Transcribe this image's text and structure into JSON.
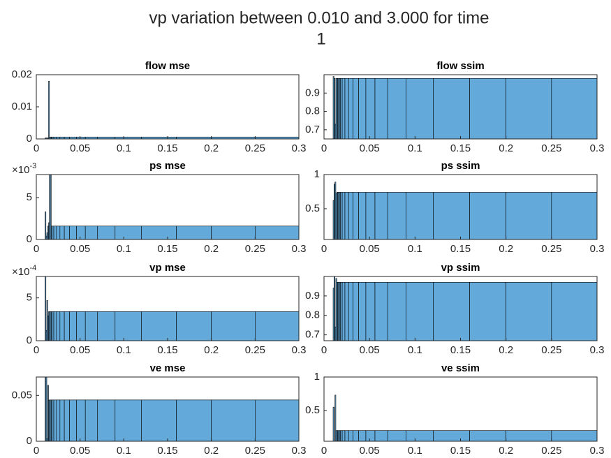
{
  "title": [
    "vp variation between 0.010 and 3.000 for time",
    "1"
  ],
  "chart_data": [
    {
      "type": "histogram",
      "title": "flow mse",
      "color": "#63a9d9",
      "bins": [
        0.01,
        0.011,
        0.012,
        0.013,
        0.014,
        0.015,
        0.016,
        0.017,
        0.018,
        0.02,
        0.023,
        0.027,
        0.032,
        0.038,
        0.046,
        0.056,
        0.07,
        0.09,
        0.12,
        0.16,
        0.2,
        0.25,
        0.3
      ],
      "values": [
        0.0003,
        0.0003,
        0.0003,
        0.0003,
        0.018,
        0.0006,
        0.0006,
        0.0006,
        0.0006,
        0.0006,
        0.0006,
        0.0006,
        0.0006,
        0.0006,
        0.0006,
        0.0006,
        0.0006,
        0.0006,
        0.0006,
        0.0006,
        0.0006,
        0.0006
      ],
      "xlim": [
        0,
        0.3
      ],
      "xticks": [
        0,
        0.05,
        0.1,
        0.15,
        0.2,
        0.25,
        0.3
      ],
      "ylim": [
        0,
        0.02
      ],
      "yticks": [
        0,
        0.01,
        0.02
      ]
    },
    {
      "type": "histogram",
      "title": "flow ssim",
      "color": "#63a9d9",
      "bins": [
        0.01,
        0.011,
        0.012,
        0.013,
        0.014,
        0.015,
        0.016,
        0.017,
        0.018,
        0.02,
        0.023,
        0.027,
        0.032,
        0.038,
        0.046,
        0.056,
        0.07,
        0.09,
        0.12,
        0.16,
        0.2,
        0.25,
        0.3
      ],
      "values": [
        0.99,
        0.98,
        0.73,
        0.98,
        0.98,
        0.98,
        0.98,
        0.98,
        0.98,
        0.98,
        0.98,
        0.98,
        0.98,
        0.98,
        0.98,
        0.98,
        0.98,
        0.98,
        0.98,
        0.98,
        0.98,
        0.98
      ],
      "xlim": [
        0,
        0.3
      ],
      "xticks": [
        0,
        0.05,
        0.1,
        0.15,
        0.2,
        0.25,
        0.3
      ],
      "ylim": [
        0.65,
        1.0
      ],
      "yticks": [
        0.7,
        0.8,
        0.9
      ]
    },
    {
      "type": "histogram",
      "title": "ps mse",
      "color": "#63a9d9",
      "bins": [
        0.01,
        0.011,
        0.012,
        0.013,
        0.014,
        0.015,
        0.016,
        0.017,
        0.018,
        0.02,
        0.023,
        0.027,
        0.032,
        0.038,
        0.046,
        0.056,
        0.07,
        0.09,
        0.12,
        0.16,
        0.2,
        0.25,
        0.3
      ],
      "values": [
        0.0033,
        0.0004,
        0.0008,
        0.0016,
        0.002,
        0.0078,
        0.0078,
        0.0016,
        0.0016,
        0.0016,
        0.0016,
        0.0016,
        0.0016,
        0.0016,
        0.0016,
        0.0016,
        0.0016,
        0.0016,
        0.0016,
        0.0016,
        0.0016,
        0.0016
      ],
      "xlim": [
        0,
        0.3
      ],
      "xticks": [
        0,
        0.05,
        0.1,
        0.15,
        0.2,
        0.25,
        0.3
      ],
      "ylim": [
        0,
        0.00775
      ],
      "yticks": [
        0,
        {
          "value": 0.005,
          "label": "5"
        }
      ],
      "y_multiplier": {
        "base": "×10",
        "exponent": "-3"
      }
    },
    {
      "type": "histogram",
      "title": "ps ssim",
      "color": "#63a9d9",
      "bins": [
        0.01,
        0.011,
        0.012,
        0.013,
        0.014,
        0.015,
        0.016,
        0.017,
        0.018,
        0.02,
        0.023,
        0.027,
        0.032,
        0.038,
        0.046,
        0.056,
        0.07,
        0.09,
        0.12,
        0.16,
        0.2,
        0.25,
        0.3
      ],
      "values": [
        0.62,
        0.86,
        0.89,
        0.72,
        0.74,
        0.74,
        0.74,
        0.74,
        0.74,
        0.74,
        0.74,
        0.74,
        0.74,
        0.74,
        0.74,
        0.74,
        0.74,
        0.74,
        0.74,
        0.74,
        0.74,
        0.74
      ],
      "xlim": [
        0,
        0.3
      ],
      "xticks": [
        0,
        0.05,
        0.1,
        0.15,
        0.2,
        0.25,
        0.3
      ],
      "ylim": [
        0.05,
        1
      ],
      "yticks": [
        0.5,
        1
      ]
    },
    {
      "type": "histogram",
      "title": "vp mse",
      "color": "#63a9d9",
      "bins": [
        0.01,
        0.011,
        0.012,
        0.013,
        0.014,
        0.015,
        0.016,
        0.017,
        0.018,
        0.02,
        0.023,
        0.027,
        0.032,
        0.038,
        0.046,
        0.056,
        0.07,
        0.09,
        0.12,
        0.16,
        0.2,
        0.25,
        0.3
      ],
      "values": [
        0.00075,
        0.00012,
        0.00047,
        0.00029,
        0.00034,
        0.00034,
        0.00034,
        0.00034,
        0.00034,
        0.00034,
        0.00034,
        0.00034,
        0.00034,
        0.00034,
        0.00034,
        0.00034,
        0.00034,
        0.00034,
        0.00034,
        0.00034,
        0.00034,
        0.00034
      ],
      "xlim": [
        0,
        0.3
      ],
      "xticks": [
        0,
        0.05,
        0.1,
        0.15,
        0.2,
        0.25,
        0.3
      ],
      "ylim": [
        0,
        0.00075
      ],
      "yticks": [
        0,
        {
          "value": 0.0005,
          "label": "5"
        }
      ],
      "y_multiplier": {
        "base": "×10",
        "exponent": "-4"
      }
    },
    {
      "type": "histogram",
      "title": "vp ssim",
      "color": "#63a9d9",
      "bins": [
        0.01,
        0.011,
        0.012,
        0.013,
        0.014,
        0.015,
        0.016,
        0.017,
        0.018,
        0.02,
        0.023,
        0.027,
        0.032,
        0.038,
        0.046,
        0.056,
        0.07,
        0.09,
        0.12,
        0.16,
        0.2,
        0.25,
        0.3
      ],
      "values": [
        0.94,
        1.0,
        0.74,
        0.99,
        0.97,
        0.97,
        0.97,
        0.97,
        0.97,
        0.97,
        0.97,
        0.97,
        0.97,
        0.97,
        0.97,
        0.97,
        0.97,
        0.97,
        0.97,
        0.97,
        0.97,
        0.97
      ],
      "xlim": [
        0,
        0.3
      ],
      "xticks": [
        0,
        0.05,
        0.1,
        0.15,
        0.2,
        0.25,
        0.3
      ],
      "ylim": [
        0.67,
        1.0
      ],
      "yticks": [
        0.7,
        0.8,
        0.9
      ]
    },
    {
      "type": "histogram",
      "title": "ve mse",
      "color": "#63a9d9",
      "bins": [
        0.01,
        0.011,
        0.012,
        0.013,
        0.014,
        0.015,
        0.016,
        0.017,
        0.018,
        0.02,
        0.023,
        0.027,
        0.032,
        0.038,
        0.046,
        0.056,
        0.07,
        0.09,
        0.12,
        0.16,
        0.2,
        0.25,
        0.3
      ],
      "values": [
        0.07,
        0.07,
        0.003,
        0.061,
        0.045,
        0.045,
        0.045,
        0.045,
        0.045,
        0.045,
        0.045,
        0.045,
        0.045,
        0.045,
        0.045,
        0.045,
        0.045,
        0.045,
        0.045,
        0.045,
        0.045,
        0.045
      ],
      "xlim": [
        0,
        0.3
      ],
      "xticks": [
        0,
        0.05,
        0.1,
        0.15,
        0.2,
        0.25,
        0.3
      ],
      "ylim": [
        0,
        0.07
      ],
      "yticks": [
        0,
        0.05
      ]
    },
    {
      "type": "histogram",
      "title": "ve ssim",
      "color": "#63a9d9",
      "bins": [
        0.01,
        0.011,
        0.012,
        0.013,
        0.014,
        0.015,
        0.016,
        0.017,
        0.018,
        0.02,
        0.023,
        0.027,
        0.032,
        0.038,
        0.046,
        0.056,
        0.07,
        0.09,
        0.12,
        0.16,
        0.2,
        0.25,
        0.3
      ],
      "values": [
        0.55,
        0.02,
        0.73,
        0.2,
        0.2,
        0.2,
        0.2,
        0.2,
        0.2,
        0.2,
        0.2,
        0.2,
        0.2,
        0.2,
        0.2,
        0.2,
        0.2,
        0.2,
        0.2,
        0.2,
        0.2,
        0.2
      ],
      "xlim": [
        0,
        0.3
      ],
      "xticks": [
        0,
        0.05,
        0.1,
        0.15,
        0.2,
        0.25,
        0.3
      ],
      "ylim": [
        0.04,
        1
      ],
      "yticks": [
        0.5,
        1
      ]
    }
  ]
}
